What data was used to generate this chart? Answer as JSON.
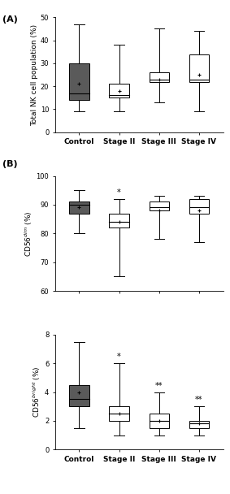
{
  "panel_A": {
    "ylabel": "Total NK cell population (%)",
    "ylim": [
      0,
      50
    ],
    "yticks": [
      0,
      10,
      20,
      30,
      40,
      50
    ],
    "categories": [
      "Control",
      "Stage II",
      "Stage III",
      "Stage IV"
    ],
    "boxes": [
      {
        "q1": 14,
        "median": 17,
        "q3": 30,
        "whisker_low": 9,
        "whisker_high": 47,
        "mean": 21,
        "color": "#5a5a5a"
      },
      {
        "q1": 15,
        "median": 16,
        "q3": 21,
        "whisker_low": 9,
        "whisker_high": 38,
        "mean": 18,
        "color": "#ffffff"
      },
      {
        "q1": 22,
        "median": 23,
        "q3": 26,
        "whisker_low": 13,
        "whisker_high": 45,
        "mean": 23,
        "color": "#ffffff"
      },
      {
        "q1": 22,
        "median": 23,
        "q3": 34,
        "whisker_low": 9,
        "whisker_high": 44,
        "mean": 25,
        "color": "#ffffff"
      }
    ],
    "significance": [
      "",
      "",
      "",
      ""
    ]
  },
  "panel_B_top": {
    "ylabel": "CD56$^{dim}$ (%)",
    "ylim": [
      60,
      100
    ],
    "yticks": [
      60,
      70,
      80,
      90,
      100
    ],
    "categories": [
      "Control",
      "Stage II",
      "Stage III",
      "Stage IV"
    ],
    "boxes": [
      {
        "q1": 87,
        "median": 90,
        "q3": 91,
        "whisker_low": 80,
        "whisker_high": 95,
        "mean": 89,
        "color": "#5a5a5a"
      },
      {
        "q1": 82,
        "median": 84,
        "q3": 87,
        "whisker_low": 65,
        "whisker_high": 92,
        "mean": 84,
        "color": "#ffffff"
      },
      {
        "q1": 88,
        "median": 89,
        "q3": 91,
        "whisker_low": 78,
        "whisker_high": 93,
        "mean": 88,
        "color": "#ffffff"
      },
      {
        "q1": 87,
        "median": 89,
        "q3": 92,
        "whisker_low": 77,
        "whisker_high": 93,
        "mean": 88,
        "color": "#ffffff"
      }
    ],
    "significance": [
      "",
      "*",
      "",
      ""
    ]
  },
  "panel_B_bottom": {
    "ylabel": "CD56$^{bright}$ (%)",
    "ylim": [
      0,
      8
    ],
    "yticks": [
      0,
      2,
      4,
      6,
      8
    ],
    "categories": [
      "Control",
      "Stage II",
      "Stage III",
      "Stage IV"
    ],
    "boxes": [
      {
        "q1": 3.0,
        "median": 3.5,
        "q3": 4.5,
        "whisker_low": 1.5,
        "whisker_high": 7.5,
        "mean": 4.0,
        "color": "#5a5a5a"
      },
      {
        "q1": 2.0,
        "median": 2.5,
        "q3": 3.0,
        "whisker_low": 1.0,
        "whisker_high": 6.0,
        "mean": 2.5,
        "color": "#ffffff"
      },
      {
        "q1": 1.5,
        "median": 2.0,
        "q3": 2.5,
        "whisker_low": 1.0,
        "whisker_high": 4.0,
        "mean": 2.0,
        "color": "#ffffff"
      },
      {
        "q1": 1.5,
        "median": 1.8,
        "q3": 2.0,
        "whisker_low": 1.0,
        "whisker_high": 3.0,
        "mean": 1.8,
        "color": "#ffffff"
      }
    ],
    "significance": [
      "",
      "*",
      "**",
      "**"
    ]
  },
  "box_width": 0.5,
  "label_A": "(A)",
  "label_B": "(B)",
  "bg_color": "#ffffff",
  "font_size": 6.5,
  "tick_font_size": 6,
  "label_fontsize": 8
}
